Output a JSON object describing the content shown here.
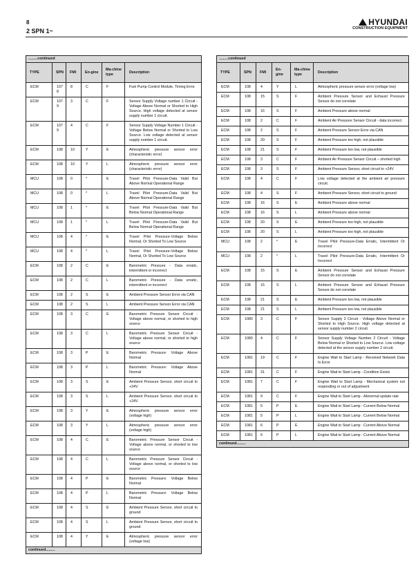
{
  "page": {
    "number": "8",
    "section": "2 SPN 1~"
  },
  "logo": {
    "brand": "HYUNDAI",
    "sub": "CONSTRUCTION EQUIPMENT"
  },
  "columns": [
    "TYPE",
    "SPN",
    "FMI",
    "En-gine",
    "Ma-chine type",
    "Description"
  ],
  "continued_top": ".........continued",
  "continued_bottom": "continued.........",
  "left_table": [
    [
      "ECM",
      "1078",
      "8",
      "C",
      "F",
      "Fuel Pump Control Module, Timing Error"
    ],
    [
      "ECM",
      "1079",
      "3",
      "C",
      "F",
      "Sensor Supply Voltage number 1 Circuit - Voltage Above Normal or Shorted to High Source. High voltage detected at sensor supply number 1 circuit."
    ],
    [
      "ECM",
      "1079",
      "4",
      "C",
      "F",
      "Sensor Supply Voltage Number 1 Circuit - Voltage Below Normal or Shorted to Low Source. Low voltage detected at sensor supply number 1 circuit."
    ],
    [
      "ECM",
      "108",
      "10",
      "Y",
      "E",
      "Atmospheric pressure sensor error (characteristic error)"
    ],
    [
      "ECM",
      "108",
      "10",
      "Y",
      "L",
      "Atmospheric pressure sensor error (characteristic error)"
    ],
    [
      "MCU",
      "108",
      "0",
      "*",
      "E",
      "Travel Pilot Pressure-Data Valid But Above Normal Operational Range"
    ],
    [
      "MCU",
      "108",
      "0",
      "*",
      "L",
      "Travel Pilot Pressure-Data Valid But Above Normal Operational Range"
    ],
    [
      "MCU",
      "108",
      "1",
      "*",
      "E",
      "Travel Pilot Pressure-Data Valid But Below Normal Operational Range"
    ],
    [
      "MCU",
      "108",
      "1",
      "*",
      "L",
      "Travel Pilot Pressure-Data Valid But Below Normal Operational Range"
    ],
    [
      "MCU",
      "108",
      "4",
      "*",
      "E",
      "Travel Pilot Pressure-Voltage Below Normal, Or Shorted To Low Source"
    ],
    [
      "MCU",
      "108",
      "4",
      "*",
      "L",
      "Travel Pilot Pressure-Voltage Below Normal, Or Shorted To Low Source"
    ],
    [
      "ECM",
      "108",
      "2",
      "C",
      "E",
      "Barometric Pressure - Data erratic, intermittent or incorrect"
    ],
    [
      "ECM",
      "108",
      "2",
      "C",
      "L",
      "Barometric Pressure - Data erratic, intermittent or incorrect"
    ],
    [
      "ECM",
      "108",
      "2",
      "S",
      "E",
      "Ambient Pressure Sensor Error via CAN"
    ],
    [
      "ECM",
      "108",
      "2",
      "S",
      "L",
      "Ambient Pressure Sensor Error via CAN"
    ],
    [
      "ECM",
      "108",
      "3",
      "C",
      "E",
      "Barometric Pressure Sensor Circuit - Voltage above normal, or shorted to high source"
    ],
    [
      "ECM",
      "108",
      "3",
      "C",
      "L",
      "Barometric Pressure Sensor Circuit - Voltage above normal, or shorted to high source"
    ],
    [
      "ECM",
      "108",
      "3",
      "P",
      "E",
      "Barometric Pressure: Voltage Above Normal"
    ],
    [
      "ECM",
      "108",
      "3",
      "P",
      "L",
      "Barometric Pressure: Voltage Above Normal"
    ],
    [
      "ECM",
      "108",
      "3",
      "S",
      "E",
      "Ambient Pressure Sensor, short circuit to +24V"
    ],
    [
      "ECM",
      "108",
      "3",
      "S",
      "L",
      "Ambient Pressure Sensor, short circuit to +24V"
    ],
    [
      "ECM",
      "108",
      "3",
      "Y",
      "E",
      "Atmospheric pressure sensor error (voltage high)"
    ],
    [
      "ECM",
      "108",
      "3",
      "Y",
      "L",
      "Atmospheric pressure sensor error (voltage high)"
    ],
    [
      "ECM",
      "108",
      "4",
      "C",
      "E",
      "Barometric Pressure Sensor Circuit - Voltage above normal, or shorted to low source"
    ],
    [
      "ECM",
      "108",
      "4",
      "C",
      "L",
      "Barometric Pressure Sensor Circuit - Voltage above normal, or shorted to low source"
    ],
    [
      "ECM",
      "108",
      "4",
      "P",
      "E",
      "Barometric Pressure: Voltage Below Normal"
    ],
    [
      "ECM",
      "108",
      "4",
      "P",
      "L",
      "Barometric Pressure: Voltage Below Normal"
    ],
    [
      "ECM",
      "108",
      "4",
      "S",
      "E",
      "Ambient Pressure Sensor, short circuit to ground"
    ],
    [
      "ECM",
      "108",
      "4",
      "S",
      "L",
      "Ambient Pressure Sensor, short circuit to ground"
    ],
    [
      "ECM",
      "108",
      "4",
      "Y",
      "E",
      "Atmospheric pressure sensor error (voltage low)"
    ]
  ],
  "right_table": [
    [
      "ECM",
      "108",
      "4",
      "Y",
      "L",
      "Atmospheric pressure sensor error (voltage low)"
    ],
    [
      "ECM",
      "108",
      "15",
      "S",
      "F",
      "Ambient Pressure Sensor and Exhaust Pressure Sensor do not correlate"
    ],
    [
      "ECM",
      "108",
      "16",
      "S",
      "F",
      "Ambient Pressure above normal"
    ],
    [
      "ECM",
      "108",
      "2",
      "C",
      "F",
      "Ambient Air Pressure Sensor Circuit - data incorrect"
    ],
    [
      "ECM",
      "108",
      "2",
      "S",
      "F",
      "Ambient Pressure Sensor Error via CAN"
    ],
    [
      "ECM",
      "108",
      "20",
      "S",
      "F",
      "Ambient Pressure too high, not plausible"
    ],
    [
      "ECM",
      "108",
      "21",
      "S",
      "F",
      "Ambient Pressure too low, not plausible"
    ],
    [
      "ECM",
      "108",
      "3",
      "C",
      "F",
      "Ambient Air Pressure Sensor Circuit – shorted high"
    ],
    [
      "ECM",
      "108",
      "3",
      "S",
      "F",
      "Ambient Pressure Sensor, short circuit to +24V"
    ],
    [
      "ECM",
      "108",
      "4",
      "C",
      "F",
      "Low voltage detected at the ambient air pressure circuit."
    ],
    [
      "ECM",
      "108",
      "4",
      "S",
      "F",
      "Ambient Pressure Sensor, short circuit to ground"
    ],
    [
      "ECM",
      "108",
      "16",
      "S",
      "E",
      "Ambient Pressure above normal"
    ],
    [
      "ECM",
      "108",
      "16",
      "S",
      "L",
      "Ambient Pressure above normal"
    ],
    [
      "ECM",
      "108",
      "20",
      "S",
      "E",
      "Ambient Pressure too high, not plausible"
    ],
    [
      "ECM",
      "108",
      "20",
      "S",
      "L",
      "Ambient Pressure too high, not plausible"
    ],
    [
      "MCU",
      "108",
      "2",
      "*",
      "E",
      "Travel Pilot Pressure-Data Erratic, Intermittent Or Incorrect"
    ],
    [
      "MCU",
      "108",
      "2",
      "*",
      "L",
      "Travel Pilot Pressure-Data Erratic, Intermittent Or Incorrect"
    ],
    [
      "ECM",
      "108",
      "15",
      "S",
      "E",
      "Ambient Pressure Sensor and Exhaust Pressure Sensor do not correlate"
    ],
    [
      "ECM",
      "108",
      "15",
      "S",
      "L",
      "Ambient Pressure Sensor and Exhaust Pressure Sensor do not correlate"
    ],
    [
      "ECM",
      "108",
      "21",
      "S",
      "E",
      "Ambient Pressure too low, not plausible"
    ],
    [
      "ECM",
      "108",
      "21",
      "S",
      "L",
      "Ambient Pressure too low, not plausible"
    ],
    [
      "ECM",
      "1080",
      "3",
      "C",
      "F",
      "Sensor Supply 2 Circuit - Voltage Above Normal or Shorted to High Source. High voltage detected at sensor supply number 2 circuit."
    ],
    [
      "ECM",
      "1080",
      "4",
      "C",
      "F",
      "Sensor Supply Voltage Number 2 Circuit - Voltage Below Normal or Shorted to Low Source. Low voltage detected at the sensor supply number 2 circuit."
    ],
    [
      "ECM",
      "1081",
      "19",
      "C",
      "F",
      "Engine Wait to Start Lamp - Received Network Data In Error"
    ],
    [
      "ECM",
      "1081",
      "31",
      "C",
      "F",
      "Engine Wait to Start Lamp - Condition Exists"
    ],
    [
      "ECM",
      "1081",
      "7",
      "C",
      "F",
      "Engine Wait to Start Lamp - Mechanical system not responding or out of adjustment"
    ],
    [
      "ECM",
      "1081",
      "9",
      "C",
      "F",
      "Engine Wait to Start Lamp - Abnormal update rate"
    ],
    [
      "ECM",
      "1081",
      "5",
      "P",
      "E",
      "Engine Wait to Start Lamp : Current Below Normal"
    ],
    [
      "ECM",
      "1081",
      "5",
      "P",
      "L",
      "Engine Wait to Start Lamp : Current Below Normal"
    ],
    [
      "ECM",
      "1081",
      "6",
      "P",
      "E",
      "Engine Wait to Start Lamp : Current Above Normal"
    ],
    [
      "ECM",
      "1081",
      "6",
      "P",
      "L",
      "Engine Wait to Start Lamp : Current Above Normal"
    ]
  ]
}
